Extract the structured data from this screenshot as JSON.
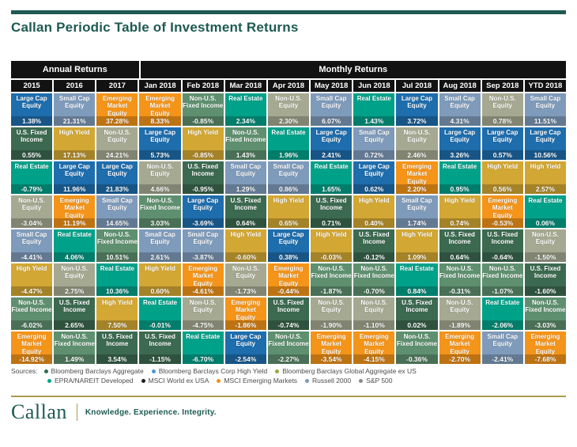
{
  "page_title": "Callan Periodic Table of Investment Returns",
  "colors": {
    "brand_teal": "#1d5a52",
    "header_black": "#121212",
    "footer_rule_gold": "#ab9b4e",
    "source_text": "#4d4d4d"
  },
  "assets": {
    "large_cap": {
      "label": "Large Cap Equity",
      "color": "#1e6dad"
    },
    "small_cap": {
      "label": "Small Cap Equity",
      "color": "#7f9bbb"
    },
    "non_us_eq": {
      "label": "Non-U.S. Equity",
      "color": "#a6a991"
    },
    "em_eq": {
      "label": "Emerging Market Equity",
      "color": "#f49419"
    },
    "us_fixed": {
      "label": "U.S. Fixed Income",
      "color": "#3c6a50"
    },
    "high_yield": {
      "label": "High Yield",
      "color": "#d2a733"
    },
    "non_us_fixed": {
      "label": "Non-U.S. Fixed Income",
      "color": "#5e906f"
    },
    "real_estate": {
      "label": "Real Estate",
      "color": "#00a189"
    }
  },
  "chart_data": {
    "type": "table",
    "title": "Callan Periodic Table of Investment Returns",
    "group_headers": [
      {
        "label": "Annual Returns",
        "span": 3
      },
      {
        "label": "Monthly Returns",
        "span": 10
      }
    ],
    "columns": [
      {
        "header": "2015",
        "cells": [
          [
            "large_cap",
            "1.38%"
          ],
          [
            "us_fixed",
            "0.55%"
          ],
          [
            "real_estate",
            "-0.79%"
          ],
          [
            "non_us_eq",
            "-3.04%"
          ],
          [
            "small_cap",
            "-4.41%"
          ],
          [
            "high_yield",
            "-4.47%"
          ],
          [
            "non_us_fixed",
            "-6.02%"
          ],
          [
            "em_eq",
            "-14.92%"
          ]
        ]
      },
      {
        "header": "2016",
        "cells": [
          [
            "small_cap",
            "21.31%"
          ],
          [
            "high_yield",
            "17.13%"
          ],
          [
            "large_cap",
            "11.96%"
          ],
          [
            "em_eq",
            "11.19%"
          ],
          [
            "real_estate",
            "4.06%"
          ],
          [
            "non_us_eq",
            "2.75%"
          ],
          [
            "us_fixed",
            "2.65%"
          ],
          [
            "non_us_fixed",
            "1.49%"
          ]
        ]
      },
      {
        "header": "2017",
        "cells": [
          [
            "em_eq",
            "37.28%"
          ],
          [
            "non_us_eq",
            "24.21%"
          ],
          [
            "large_cap",
            "21.83%"
          ],
          [
            "small_cap",
            "14.65%"
          ],
          [
            "non_us_fixed",
            "10.51%"
          ],
          [
            "real_estate",
            "10.36%"
          ],
          [
            "high_yield",
            "7.50%"
          ],
          [
            "us_fixed",
            "3.54%"
          ]
        ]
      },
      {
        "header": "Jan 2018",
        "cells": [
          [
            "em_eq",
            "8.33%"
          ],
          [
            "large_cap",
            "5.73%"
          ],
          [
            "non_us_eq",
            "4.66%"
          ],
          [
            "non_us_fixed",
            "3.03%"
          ],
          [
            "small_cap",
            "2.61%"
          ],
          [
            "high_yield",
            "0.60%"
          ],
          [
            "real_estate",
            "-0.01%"
          ],
          [
            "us_fixed",
            "-1.15%"
          ]
        ]
      },
      {
        "header": "Feb 2018",
        "cells": [
          [
            "non_us_fixed",
            "-0.85%"
          ],
          [
            "high_yield",
            "-0.85%"
          ],
          [
            "us_fixed",
            "-0.95%"
          ],
          [
            "large_cap",
            "-3.69%"
          ],
          [
            "small_cap",
            "-3.87%"
          ],
          [
            "em_eq",
            "-4.61%"
          ],
          [
            "non_us_eq",
            "-4.75%"
          ],
          [
            "real_estate",
            "-6.70%"
          ]
        ]
      },
      {
        "header": "Mar 2018",
        "cells": [
          [
            "real_estate",
            "2.34%"
          ],
          [
            "non_us_fixed",
            "1.43%"
          ],
          [
            "small_cap",
            "1.29%"
          ],
          [
            "us_fixed",
            "0.64%"
          ],
          [
            "high_yield",
            "-0.60%"
          ],
          [
            "non_us_eq",
            "-1.73%"
          ],
          [
            "em_eq",
            "-1.86%"
          ],
          [
            "large_cap",
            "-2.54%"
          ]
        ]
      },
      {
        "header": "Apr 2018",
        "cells": [
          [
            "non_us_eq",
            "2.30%"
          ],
          [
            "real_estate",
            "1.96%"
          ],
          [
            "small_cap",
            "0.86%"
          ],
          [
            "high_yield",
            "0.65%"
          ],
          [
            "large_cap",
            "0.38%"
          ],
          [
            "em_eq",
            "-0.44%"
          ],
          [
            "us_fixed",
            "-0.74%"
          ],
          [
            "non_us_fixed",
            "-2.27%"
          ]
        ]
      },
      {
        "header": "May 2018",
        "cells": [
          [
            "small_cap",
            "6.07%"
          ],
          [
            "large_cap",
            "2.41%"
          ],
          [
            "real_estate",
            "1.65%"
          ],
          [
            "us_fixed",
            "0.71%"
          ],
          [
            "high_yield",
            "-0.03%"
          ],
          [
            "non_us_fixed",
            "-1.87%"
          ],
          [
            "non_us_eq",
            "-1.90%"
          ],
          [
            "em_eq",
            "-3.54%"
          ]
        ]
      },
      {
        "header": "Jun 2018",
        "cells": [
          [
            "real_estate",
            "1.43%"
          ],
          [
            "small_cap",
            "0.72%"
          ],
          [
            "large_cap",
            "0.62%"
          ],
          [
            "high_yield",
            "0.40%"
          ],
          [
            "us_fixed",
            "-0.12%"
          ],
          [
            "non_us_fixed",
            "-0.70%"
          ],
          [
            "non_us_eq",
            "-1.10%"
          ],
          [
            "em_eq",
            "-4.15%"
          ]
        ]
      },
      {
        "header": "Jul 2018",
        "cells": [
          [
            "large_cap",
            "3.72%"
          ],
          [
            "non_us_eq",
            "2.46%"
          ],
          [
            "em_eq",
            "2.20%"
          ],
          [
            "small_cap",
            "1.74%"
          ],
          [
            "high_yield",
            "1.09%"
          ],
          [
            "real_estate",
            "0.84%"
          ],
          [
            "us_fixed",
            "0.02%"
          ],
          [
            "non_us_fixed",
            "-0.36%"
          ]
        ]
      },
      {
        "header": "Aug 2018",
        "cells": [
          [
            "small_cap",
            "4.31%"
          ],
          [
            "large_cap",
            "3.26%"
          ],
          [
            "real_estate",
            "0.95%"
          ],
          [
            "high_yield",
            "0.74%"
          ],
          [
            "us_fixed",
            "0.64%"
          ],
          [
            "non_us_fixed",
            "-0.31%"
          ],
          [
            "non_us_eq",
            "-1.89%"
          ],
          [
            "em_eq",
            "-2.70%"
          ]
        ]
      },
      {
        "header": "Sep 2018",
        "cells": [
          [
            "non_us_eq",
            "0.78%"
          ],
          [
            "large_cap",
            "0.57%"
          ],
          [
            "high_yield",
            "0.56%"
          ],
          [
            "em_eq",
            "-0.53%"
          ],
          [
            "us_fixed",
            "-0.64%"
          ],
          [
            "non_us_fixed",
            "-1.07%"
          ],
          [
            "real_estate",
            "-2.06%"
          ],
          [
            "small_cap",
            "-2.41%"
          ]
        ]
      },
      {
        "header": "YTD 2018",
        "cells": [
          [
            "small_cap",
            "11.51%"
          ],
          [
            "large_cap",
            "10.56%"
          ],
          [
            "high_yield",
            "2.57%"
          ],
          [
            "real_estate",
            "0.06%"
          ],
          [
            "non_us_eq",
            "-1.50%"
          ],
          [
            "us_fixed",
            "-1.60%"
          ],
          [
            "non_us_fixed",
            "-3.03%"
          ],
          [
            "em_eq",
            "-7.68%"
          ]
        ]
      }
    ]
  },
  "sources": {
    "label": "Sources:",
    "lines": [
      [
        {
          "name": "Bloomberg Barclays Aggregate",
          "color": "#2f6b4f"
        },
        {
          "name": "Bloomberg Barclays Corp High Yield",
          "color": "#4f93d2"
        },
        {
          "name": "Bloomberg Barclays Global Aggregate ex US",
          "color": "#9aa73c"
        }
      ],
      [
        {
          "name": "EPRA/NAREIT Developed",
          "color": "#00a289"
        },
        {
          "name": "MSCI World ex USA",
          "color": "#1f1f1f"
        },
        {
          "name": "MSCI Emerging Markets",
          "color": "#f09315"
        },
        {
          "name": "Russell 2000",
          "color": "#7d99ba"
        },
        {
          "name": "S&P 500",
          "color": "#8a8a8a"
        }
      ]
    ]
  },
  "footer": {
    "brand": "Callan",
    "tagline": "Knowledge. Experience. Integrity."
  }
}
